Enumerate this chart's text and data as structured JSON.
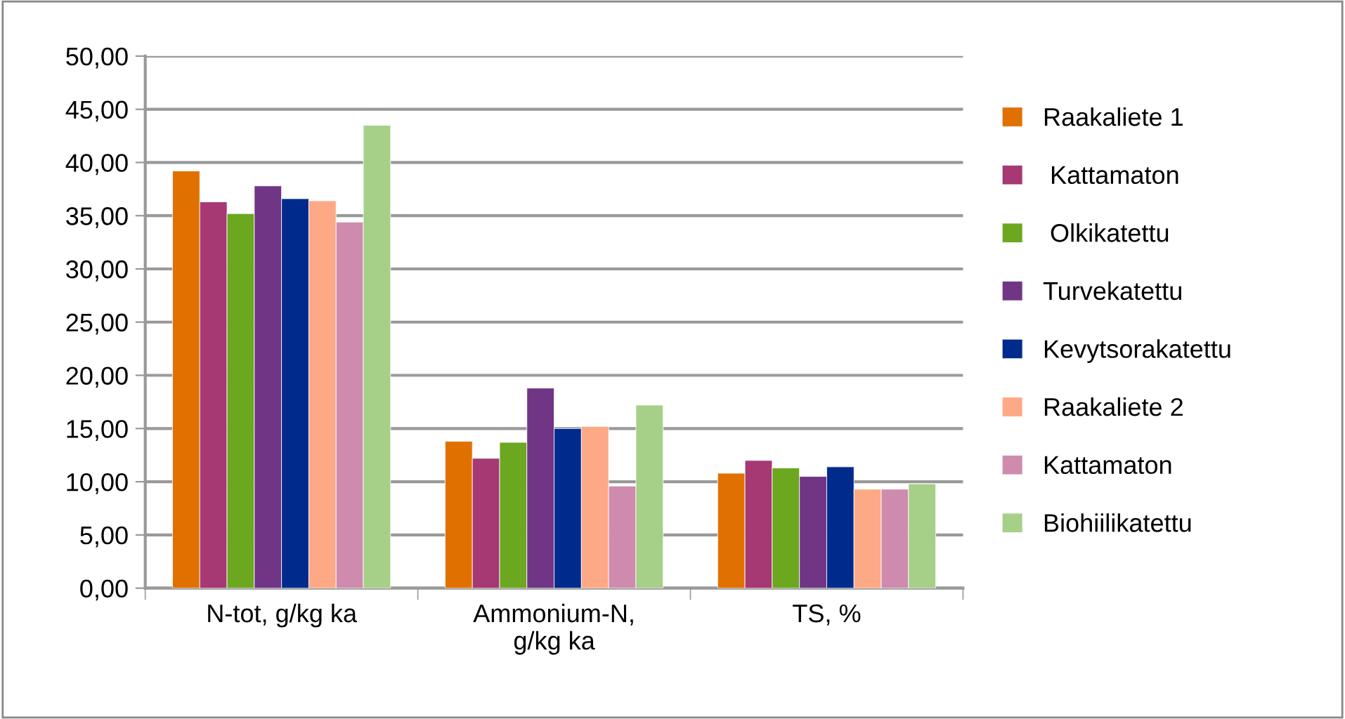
{
  "chart_data": {
    "type": "bar",
    "categories": [
      "N-tot, g/kg ka",
      "Ammonium-N,\ng/kg ka",
      "TS, %"
    ],
    "series": [
      {
        "name": "Raakaliete 1",
        "color": "#e07000",
        "values": [
          39.2,
          13.8,
          10.8
        ]
      },
      {
        "name": " Kattamaton",
        "color": "#a63874",
        "values": [
          36.3,
          12.2,
          12.0
        ]
      },
      {
        "name": " Olkikatettu",
        "color": "#6ba71f",
        "values": [
          35.2,
          13.7,
          11.3
        ]
      },
      {
        "name": "Turvekatettu",
        "color": "#713585",
        "values": [
          37.8,
          18.8,
          10.5
        ]
      },
      {
        "name": "Kevytsorakatettu",
        "color": "#002b8c",
        "values": [
          36.6,
          15.0,
          11.4
        ]
      },
      {
        "name": "Raakaliete 2",
        "color": "#fea985",
        "values": [
          36.4,
          15.2,
          9.3
        ]
      },
      {
        "name": "Kattamaton",
        "color": "#cf8bad",
        "values": [
          34.4,
          9.6,
          9.3
        ]
      },
      {
        "name": "Biohiilikatettu",
        "color": "#a6cf88",
        "values": [
          43.5,
          17.2,
          9.8
        ]
      }
    ],
    "ylim": [
      0,
      50
    ],
    "yticks": [
      {
        "value": 0,
        "label": "0,00"
      },
      {
        "value": 5,
        "label": "5,00"
      },
      {
        "value": 10,
        "label": "10,00"
      },
      {
        "value": 15,
        "label": "15,00"
      },
      {
        "value": 20,
        "label": "20,00"
      },
      {
        "value": 25,
        "label": "25,00"
      },
      {
        "value": 30,
        "label": "30,00"
      },
      {
        "value": 35,
        "label": "35,00"
      },
      {
        "value": 40,
        "label": "40,00"
      },
      {
        "value": 45,
        "label": "45,00"
      },
      {
        "value": 50,
        "label": "50,00"
      }
    ],
    "grid": "y",
    "legend": "right"
  }
}
